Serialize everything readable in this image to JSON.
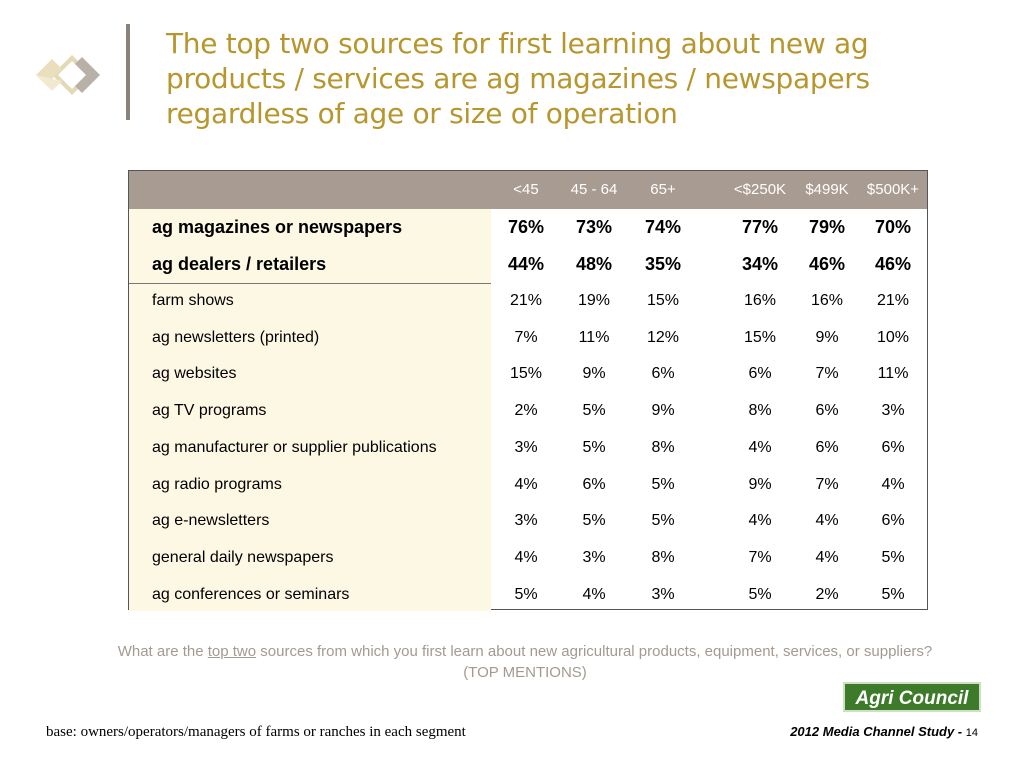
{
  "title": "The top two sources for first learning about new ag products / services are ag magazines / newspapers regardless of age or size of operation",
  "colors": {
    "title": "#b8962e",
    "header_bg": "#a89b92",
    "label_bg": "#fdf8e4",
    "brand_bg": "#3d7a2a"
  },
  "table": {
    "columns": [
      "<45",
      "45 - 64",
      "65+",
      "<$250K",
      "$499K",
      "$500K+"
    ],
    "top_rows": [
      {
        "label": "ag magazines or newspapers",
        "values": [
          "76%",
          "73%",
          "74%",
          "77%",
          "79%",
          "70%"
        ]
      },
      {
        "label": "ag dealers / retailers",
        "values": [
          "44%",
          "48%",
          "35%",
          "34%",
          "46%",
          "46%"
        ]
      }
    ],
    "rows": [
      {
        "label": "farm shows",
        "values": [
          "21%",
          "19%",
          "15%",
          "16%",
          "16%",
          "21%"
        ]
      },
      {
        "label": "ag newsletters (printed)",
        "values": [
          "7%",
          "11%",
          "12%",
          "15%",
          "9%",
          "10%"
        ]
      },
      {
        "label": "ag websites",
        "values": [
          "15%",
          "9%",
          "6%",
          "6%",
          "7%",
          "11%"
        ]
      },
      {
        "label": "ag TV programs",
        "values": [
          "2%",
          "5%",
          "9%",
          "8%",
          "6%",
          "3%"
        ]
      },
      {
        "label": "ag manufacturer or supplier publications",
        "values": [
          "3%",
          "5%",
          "8%",
          "4%",
          "6%",
          "6%"
        ]
      },
      {
        "label": "ag radio programs",
        "values": [
          "4%",
          "6%",
          "5%",
          "9%",
          "7%",
          "4%"
        ]
      },
      {
        "label": "ag e-newsletters",
        "values": [
          "3%",
          "5%",
          "5%",
          "4%",
          "4%",
          "6%"
        ]
      },
      {
        "label": "general daily newspapers",
        "values": [
          "4%",
          "3%",
          "8%",
          "7%",
          "4%",
          "5%"
        ]
      },
      {
        "label": "ag conferences or seminars",
        "values": [
          "5%",
          "4%",
          "3%",
          "5%",
          "2%",
          "5%"
        ]
      }
    ]
  },
  "question": {
    "prefix": "What are the ",
    "underlined": "top two",
    "suffix": " sources from which you first learn about new agricultural products, equipment, services, or suppliers?",
    "line2": "(TOP MENTIONS)"
  },
  "brand": "Agri Council",
  "base_note": "base:  owners/operators/managers of farms or ranches in each segment",
  "footer": {
    "study": "2012 Media Channel Study - ",
    "page": "14"
  }
}
